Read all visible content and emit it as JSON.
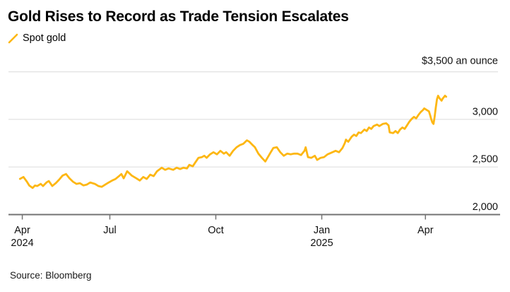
{
  "header": {
    "title": "Gold Rises to Record as Trade Tension Escalates"
  },
  "legend": {
    "items": [
      {
        "label": "Spot gold",
        "color": "#FDB713"
      }
    ]
  },
  "footer": {
    "source": "Source: Bloomberg"
  },
  "chart_data": {
    "type": "line",
    "title": "Gold Rises to Record as Trade Tension Escalates",
    "unit": "$ an ounce",
    "grid": true,
    "legend_position": "top-left",
    "y_axis": {
      "min": 2000,
      "max": 3500,
      "ticks": [
        {
          "value": 3500,
          "label": "$3,500 an ounce"
        },
        {
          "value": 3000,
          "label": "3,000"
        },
        {
          "value": 2500,
          "label": "2,500"
        },
        {
          "value": 2000,
          "label": "2,000"
        }
      ]
    },
    "x_axis": {
      "days_from": "2024-04-16",
      "domain_days": [
        -12,
        413
      ],
      "ticks": [
        {
          "label": "Apr",
          "sublabel": "2024",
          "day": 0
        },
        {
          "label": "Jul",
          "day": 76
        },
        {
          "label": "Oct",
          "day": 168
        },
        {
          "label": "Jan",
          "sublabel": "2025",
          "day": 260
        },
        {
          "label": "Apr",
          "day": 350
        }
      ]
    },
    "series": [
      {
        "name": "Spot gold",
        "color": "#FDB713",
        "points": [
          [
            -2,
            2375
          ],
          [
            1,
            2395
          ],
          [
            4,
            2345
          ],
          [
            6,
            2305
          ],
          [
            9,
            2280
          ],
          [
            11,
            2305
          ],
          [
            13,
            2300
          ],
          [
            16,
            2322
          ],
          [
            18,
            2300
          ],
          [
            21,
            2337
          ],
          [
            23,
            2352
          ],
          [
            26,
            2300
          ],
          [
            29,
            2330
          ],
          [
            32,
            2367
          ],
          [
            35,
            2410
          ],
          [
            38,
            2426
          ],
          [
            41,
            2381
          ],
          [
            44,
            2345
          ],
          [
            47,
            2322
          ],
          [
            50,
            2330
          ],
          [
            53,
            2307
          ],
          [
            56,
            2315
          ],
          [
            59,
            2337
          ],
          [
            63,
            2322
          ],
          [
            66,
            2300
          ],
          [
            69,
            2292
          ],
          [
            72,
            2315
          ],
          [
            75,
            2337
          ],
          [
            78,
            2358
          ],
          [
            81,
            2374
          ],
          [
            84,
            2404
          ],
          [
            86,
            2426
          ],
          [
            88,
            2381
          ],
          [
            91,
            2455
          ],
          [
            95,
            2410
          ],
          [
            99,
            2381
          ],
          [
            102,
            2358
          ],
          [
            105,
            2395
          ],
          [
            108,
            2374
          ],
          [
            111,
            2419
          ],
          [
            114,
            2404
          ],
          [
            117,
            2455
          ],
          [
            121,
            2492
          ],
          [
            124,
            2470
          ],
          [
            127,
            2485
          ],
          [
            131,
            2470
          ],
          [
            134,
            2492
          ],
          [
            137,
            2478
          ],
          [
            140,
            2492
          ],
          [
            143,
            2485
          ],
          [
            145,
            2522
          ],
          [
            148,
            2507
          ],
          [
            150,
            2544
          ],
          [
            153,
            2596
          ],
          [
            156,
            2604
          ],
          [
            158,
            2618
          ],
          [
            160,
            2596
          ],
          [
            163,
            2633
          ],
          [
            166,
            2655
          ],
          [
            169,
            2633
          ],
          [
            172,
            2670
          ],
          [
            175,
            2640
          ],
          [
            177,
            2655
          ],
          [
            180,
            2618
          ],
          [
            183,
            2670
          ],
          [
            186,
            2707
          ],
          [
            189,
            2730
          ],
          [
            192,
            2744
          ],
          [
            195,
            2780
          ],
          [
            197,
            2766
          ],
          [
            200,
            2730
          ],
          [
            202,
            2707
          ],
          [
            205,
            2640
          ],
          [
            208,
            2596
          ],
          [
            211,
            2558
          ],
          [
            215,
            2640
          ],
          [
            218,
            2700
          ],
          [
            221,
            2707
          ],
          [
            224,
            2655
          ],
          [
            227,
            2618
          ],
          [
            230,
            2640
          ],
          [
            233,
            2633
          ],
          [
            236,
            2640
          ],
          [
            239,
            2640
          ],
          [
            242,
            2625
          ],
          [
            245,
            2670
          ],
          [
            246,
            2707
          ],
          [
            248,
            2604
          ],
          [
            251,
            2596
          ],
          [
            254,
            2618
          ],
          [
            256,
            2574
          ],
          [
            259,
            2596
          ],
          [
            262,
            2604
          ],
          [
            265,
            2633
          ],
          [
            268,
            2648
          ],
          [
            272,
            2670
          ],
          [
            275,
            2655
          ],
          [
            278,
            2700
          ],
          [
            280,
            2750
          ],
          [
            281,
            2787
          ],
          [
            283,
            2765
          ],
          [
            286,
            2818
          ],
          [
            288,
            2840
          ],
          [
            290,
            2826
          ],
          [
            292,
            2863
          ],
          [
            294,
            2856
          ],
          [
            297,
            2893
          ],
          [
            299,
            2878
          ],
          [
            301,
            2915
          ],
          [
            303,
            2900
          ],
          [
            305,
            2930
          ],
          [
            308,
            2945
          ],
          [
            310,
            2930
          ],
          [
            313,
            2952
          ],
          [
            316,
            2959
          ],
          [
            318,
            2937
          ],
          [
            319,
            2863
          ],
          [
            322,
            2856
          ],
          [
            324,
            2878
          ],
          [
            326,
            2856
          ],
          [
            328,
            2893
          ],
          [
            330,
            2915
          ],
          [
            332,
            2900
          ],
          [
            334,
            2937
          ],
          [
            336,
            2974
          ],
          [
            338,
            3004
          ],
          [
            340,
            3026
          ],
          [
            342,
            3011
          ],
          [
            344,
            3048
          ],
          [
            346,
            3078
          ],
          [
            348,
            3100
          ],
          [
            349,
            3115
          ],
          [
            351,
            3100
          ],
          [
            353,
            3085
          ],
          [
            354,
            3048
          ],
          [
            355,
            3004
          ],
          [
            356,
            2967
          ],
          [
            357,
            2952
          ],
          [
            358,
            3026
          ],
          [
            359,
            3122
          ],
          [
            360,
            3211
          ],
          [
            361,
            3248
          ],
          [
            362,
            3226
          ],
          [
            364,
            3196
          ],
          [
            365,
            3218
          ],
          [
            367,
            3248
          ],
          [
            368,
            3238
          ]
        ]
      }
    ]
  }
}
